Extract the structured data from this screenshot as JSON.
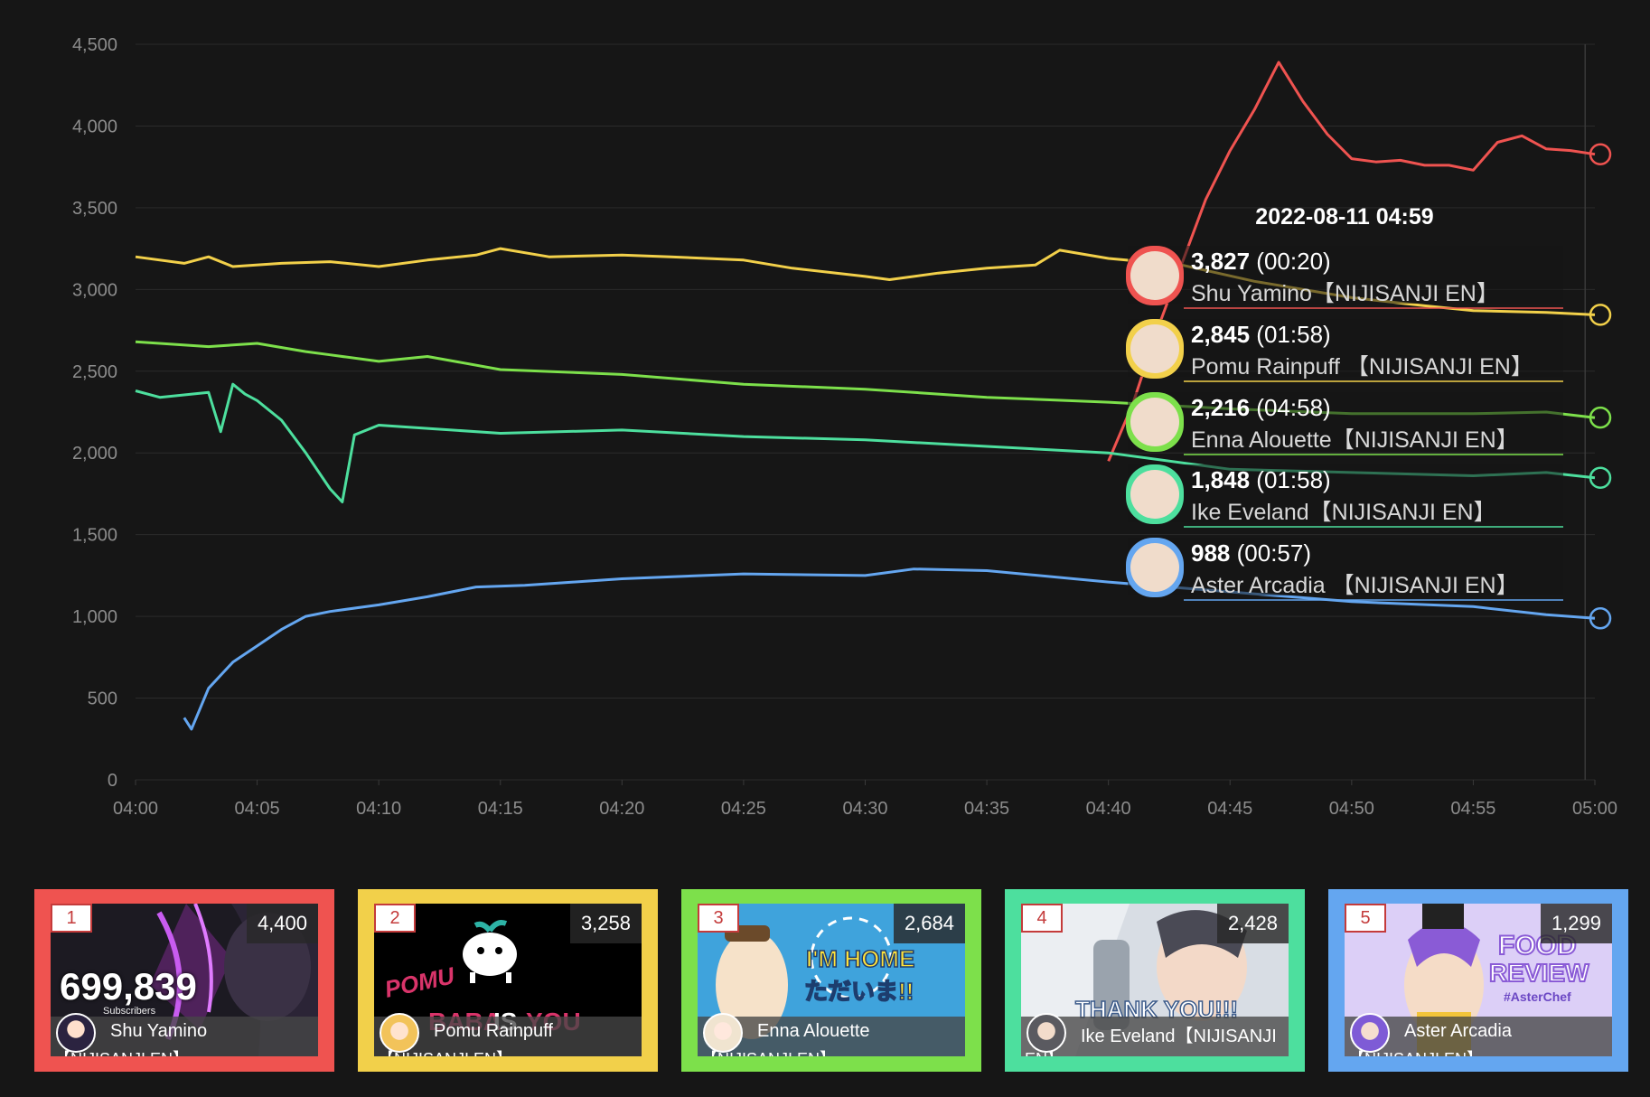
{
  "chart_data": {
    "type": "line",
    "x_ticks": [
      "04:00",
      "04:05",
      "04:10",
      "04:15",
      "04:20",
      "04:25",
      "04:30",
      "04:35",
      "04:40",
      "04:45",
      "04:50",
      "04:55",
      "05:00"
    ],
    "y_ticks": [
      "0",
      "500",
      "1,000",
      "1,500",
      "2,000",
      "2,500",
      "3,000",
      "3,500",
      "4,000",
      "4,500"
    ],
    "xlim": [
      "04:00",
      "05:00"
    ],
    "ylim": [
      0,
      4500
    ],
    "grid": true,
    "series": [
      {
        "name": "Shu Yamino【NIJISANJI EN】",
        "color": "#ef5350",
        "x": [
          "04:40",
          "04:41",
          "04:42",
          "04:43",
          "04:44",
          "04:45",
          "04:46",
          "04:47",
          "04:48",
          "04:49",
          "04:50",
          "04:51",
          "04:52",
          "04:53",
          "04:54",
          "04:55",
          "04:56",
          "04:57",
          "04:58",
          "04:59",
          "05:00"
        ],
        "y": [
          1950,
          2300,
          2750,
          3150,
          3550,
          3850,
          4100,
          4390,
          4150,
          3950,
          3800,
          3780,
          3790,
          3760,
          3760,
          3730,
          3900,
          3940,
          3860,
          3850,
          3827
        ]
      },
      {
        "name": "Pomu Rainpuff 【NIJISANJI EN】",
        "color": "#f2d04a",
        "x": [
          "04:00",
          "04:02",
          "04:03",
          "04:04",
          "04:06",
          "04:08",
          "04:10",
          "04:12",
          "04:14",
          "04:15",
          "04:17",
          "04:20",
          "04:22",
          "04:25",
          "04:27",
          "04:30",
          "04:31",
          "04:33",
          "04:35",
          "04:37",
          "04:38",
          "04:40",
          "04:43",
          "04:46",
          "04:50",
          "04:53",
          "04:55",
          "04:58",
          "05:00"
        ],
        "y": [
          3200,
          3160,
          3200,
          3140,
          3160,
          3170,
          3140,
          3180,
          3210,
          3250,
          3200,
          3210,
          3200,
          3180,
          3130,
          3080,
          3060,
          3100,
          3130,
          3150,
          3240,
          3190,
          3150,
          3050,
          2950,
          2900,
          2870,
          2860,
          2845
        ]
      },
      {
        "name": "Enna Alouette【NIJISANJI EN】",
        "color": "#7de04b",
        "x": [
          "04:00",
          "04:03",
          "04:05",
          "04:07",
          "04:08",
          "04:10",
          "04:12",
          "04:15",
          "04:20",
          "04:25",
          "04:30",
          "04:35",
          "04:40",
          "04:45",
          "04:50",
          "04:55",
          "04:58",
          "05:00"
        ],
        "y": [
          2680,
          2650,
          2670,
          2620,
          2600,
          2560,
          2590,
          2510,
          2480,
          2420,
          2390,
          2340,
          2310,
          2270,
          2240,
          2240,
          2250,
          2216
        ]
      },
      {
        "name": "Ike Eveland【NIJISANJI EN】",
        "color": "#4ddf9e",
        "x": [
          "04:00",
          "04:01",
          "04:03",
          "04:03.5",
          "04:04",
          "04:04.5",
          "04:05",
          "04:06",
          "04:07",
          "04:08",
          "04:08.5",
          "04:09",
          "04:10",
          "04:12",
          "04:15",
          "04:20",
          "04:25",
          "04:30",
          "04:35",
          "04:40",
          "04:45",
          "04:50",
          "04:55",
          "04:58",
          "05:00"
        ],
        "y": [
          2380,
          2340,
          2370,
          2130,
          2420,
          2360,
          2320,
          2200,
          2000,
          1780,
          1700,
          2110,
          2170,
          2150,
          2120,
          2140,
          2100,
          2080,
          2040,
          2000,
          1900,
          1880,
          1860,
          1880,
          1848
        ]
      },
      {
        "name": "Aster Arcadia 【NIJISANJI EN】",
        "color": "#64a6f0",
        "x": [
          "04:02",
          "04:02.3",
          "04:03",
          "04:04",
          "04:05",
          "04:06",
          "04:07",
          "04:08",
          "04:10",
          "04:12",
          "04:14",
          "04:16",
          "04:18",
          "04:20",
          "04:25",
          "04:30",
          "04:32",
          "04:35",
          "04:40",
          "04:45",
          "04:50",
          "04:55",
          "04:58",
          "05:00"
        ],
        "y": [
          380,
          310,
          560,
          720,
          820,
          920,
          1000,
          1030,
          1070,
          1120,
          1180,
          1190,
          1210,
          1230,
          1260,
          1250,
          1290,
          1280,
          1210,
          1150,
          1090,
          1060,
          1010,
          988
        ]
      }
    ],
    "tooltip": {
      "time": "2022-08-11 04:59",
      "entries": [
        {
          "value": "3,827",
          "duration": " (00:20)",
          "name": "Shu Yamino【NIJISANJI EN】",
          "color": "#ef5350"
        },
        {
          "value": "2,845",
          "duration": " (01:58)",
          "name": "Pomu Rainpuff 【NIJISANJI EN】",
          "color": "#f2d04a"
        },
        {
          "value": "2,216",
          "duration": " (04:58)",
          "name": "Enna Alouette【NIJISANJI EN】",
          "color": "#7de04b"
        },
        {
          "value": "1,848",
          "duration": " (01:58)",
          "name": "Ike Eveland【NIJISANJI EN】",
          "color": "#4ddf9e"
        },
        {
          "value": "988",
          "duration": " (00:57)",
          "name": "Aster Arcadia 【NIJISANJI EN】",
          "color": "#64a6f0"
        }
      ]
    }
  },
  "cards": [
    {
      "rank": "1",
      "peak": "4,400",
      "subs": "699,839",
      "subs_label": "Subscribers",
      "name": "Shu Yamino",
      "name2": "【NIJISANJI EN】",
      "color": "#ef5350"
    },
    {
      "rank": "2",
      "peak": "3,258",
      "name": "Pomu Rainpuff",
      "name2": "【NIJISANJI EN】",
      "color": "#f2d04a",
      "thumb_text": "POMU  BABA  IS  YOU"
    },
    {
      "rank": "3",
      "peak": "2,684",
      "name": "Enna Alouette",
      "name2": "【NIJISANJI EN】",
      "color": "#7de04b",
      "thumb_text": "I'M HOME ただいま!!"
    },
    {
      "rank": "4",
      "peak": "2,428",
      "name": "Ike Eveland【NIJISANJI",
      "name2": "EN】",
      "color": "#4ddf9e",
      "thumb_text": "THANK YOU!!!"
    },
    {
      "rank": "5",
      "peak": "1,299",
      "name": "Aster Arcadia",
      "name2": "【NIJISANJI EN】",
      "color": "#64a6f0",
      "thumb_text": "FOOD REVIEW #AsterChef"
    }
  ]
}
